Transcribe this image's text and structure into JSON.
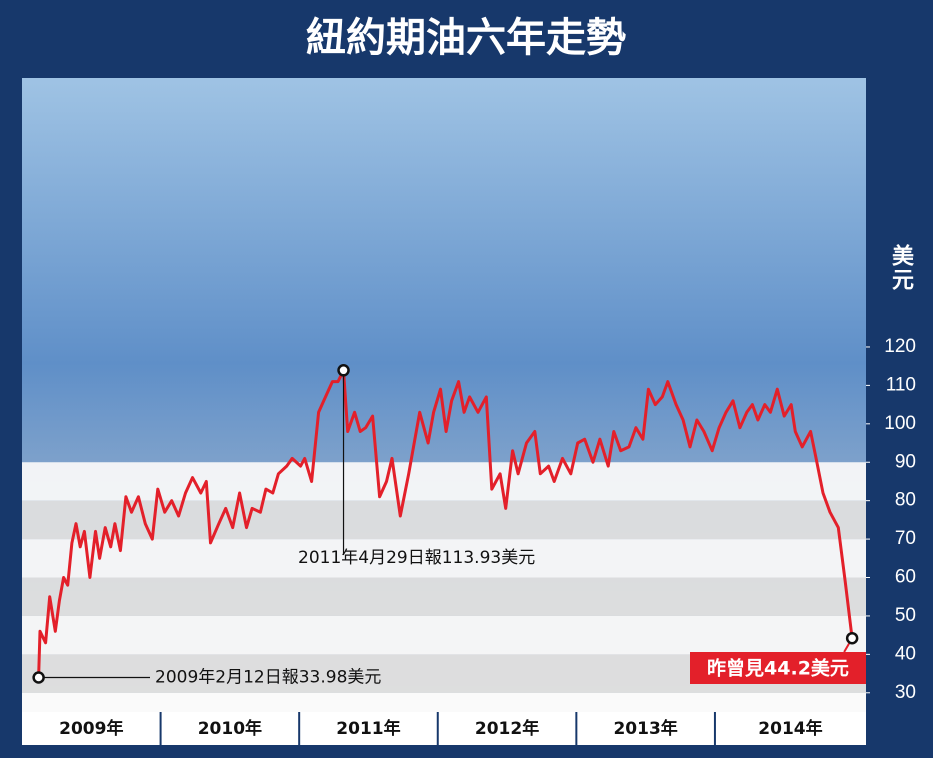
{
  "chart_data": {
    "type": "line",
    "title": "紐約期油六年走勢",
    "y_axis_label": "美元",
    "year_labels": [
      "2009年",
      "2010年",
      "2011年",
      "2012年",
      "2013年",
      "2014年"
    ],
    "xlim": [
      2009,
      2015.09
    ],
    "ylim": [
      25,
      190
    ],
    "yticks": [
      30,
      40,
      50,
      60,
      70,
      80,
      90,
      100,
      110,
      120
    ],
    "color": "#e3202a",
    "x": [
      2009.12,
      2009.13,
      2009.17,
      2009.2,
      2009.24,
      2009.27,
      2009.3,
      2009.33,
      2009.36,
      2009.39,
      2009.42,
      2009.45,
      2009.49,
      2009.53,
      2009.56,
      2009.6,
      2009.64,
      2009.67,
      2009.71,
      2009.75,
      2009.79,
      2009.84,
      2009.89,
      2009.94,
      2009.98,
      2010.03,
      2010.08,
      2010.13,
      2010.18,
      2010.23,
      2010.29,
      2010.33,
      2010.36,
      2010.42,
      2010.47,
      2010.52,
      2010.57,
      2010.62,
      2010.66,
      2010.72,
      2010.76,
      2010.81,
      2010.85,
      2010.91,
      2010.95,
      2011.01,
      2011.04,
      2011.09,
      2011.14,
      2011.19,
      2011.24,
      2011.28,
      2011.32,
      2011.35,
      2011.4,
      2011.44,
      2011.48,
      2011.53,
      2011.58,
      2011.63,
      2011.67,
      2011.73,
      2011.79,
      2011.83,
      2011.87,
      2011.93,
      2011.97,
      2012.02,
      2012.06,
      2012.1,
      2012.15,
      2012.19,
      2012.23,
      2012.29,
      2012.35,
      2012.39,
      2012.45,
      2012.49,
      2012.54,
      2012.58,
      2012.64,
      2012.7,
      2012.74,
      2012.8,
      2012.84,
      2012.9,
      2012.96,
      2013.01,
      2013.06,
      2013.12,
      2013.17,
      2013.23,
      2013.27,
      2013.32,
      2013.38,
      2013.43,
      2013.48,
      2013.52,
      2013.57,
      2013.62,
      2013.66,
      2013.72,
      2013.77,
      2013.82,
      2013.87,
      2013.92,
      2013.98,
      2014.03,
      2014.08,
      2014.13,
      2014.18,
      2014.23,
      2014.27,
      2014.31,
      2014.36,
      2014.4,
      2014.45,
      2014.5,
      2014.55,
      2014.58,
      2014.63,
      2014.69,
      2014.73,
      2014.78,
      2014.83,
      2014.89,
      2014.94,
      2014.99
    ],
    "values": [
      33.98,
      46,
      43,
      55,
      46,
      54,
      60,
      58,
      69,
      74,
      68,
      72,
      60,
      72,
      65,
      73,
      68,
      74,
      67,
      81,
      77,
      81,
      74,
      70,
      83,
      77,
      80,
      76,
      82,
      86,
      82,
      85,
      69,
      74,
      78,
      73,
      82,
      73,
      78,
      77,
      83,
      82,
      87,
      89,
      91,
      89,
      91,
      85,
      103,
      107,
      111,
      111,
      113.93,
      98,
      103,
      98,
      99,
      102,
      81,
      85,
      91,
      76,
      87,
      95,
      103,
      95,
      103,
      109,
      98,
      106,
      111,
      103,
      107,
      103,
      107,
      83,
      87,
      78,
      93,
      87,
      95,
      98,
      87,
      89,
      85,
      91,
      87,
      95,
      96,
      90,
      96,
      89,
      98,
      93,
      94,
      99,
      96,
      109,
      105,
      107,
      111,
      105,
      101,
      94,
      101,
      98,
      93,
      99,
      103,
      106,
      99,
      103,
      105,
      101,
      105,
      103,
      109,
      102,
      105,
      98,
      94,
      98,
      91,
      82,
      77,
      73,
      59,
      44.2
    ],
    "annotations": [
      "2009年2月12日報33.98美元",
      "2011年4月29日報113.93美元",
      "昨曾見44.2美元"
    ]
  }
}
